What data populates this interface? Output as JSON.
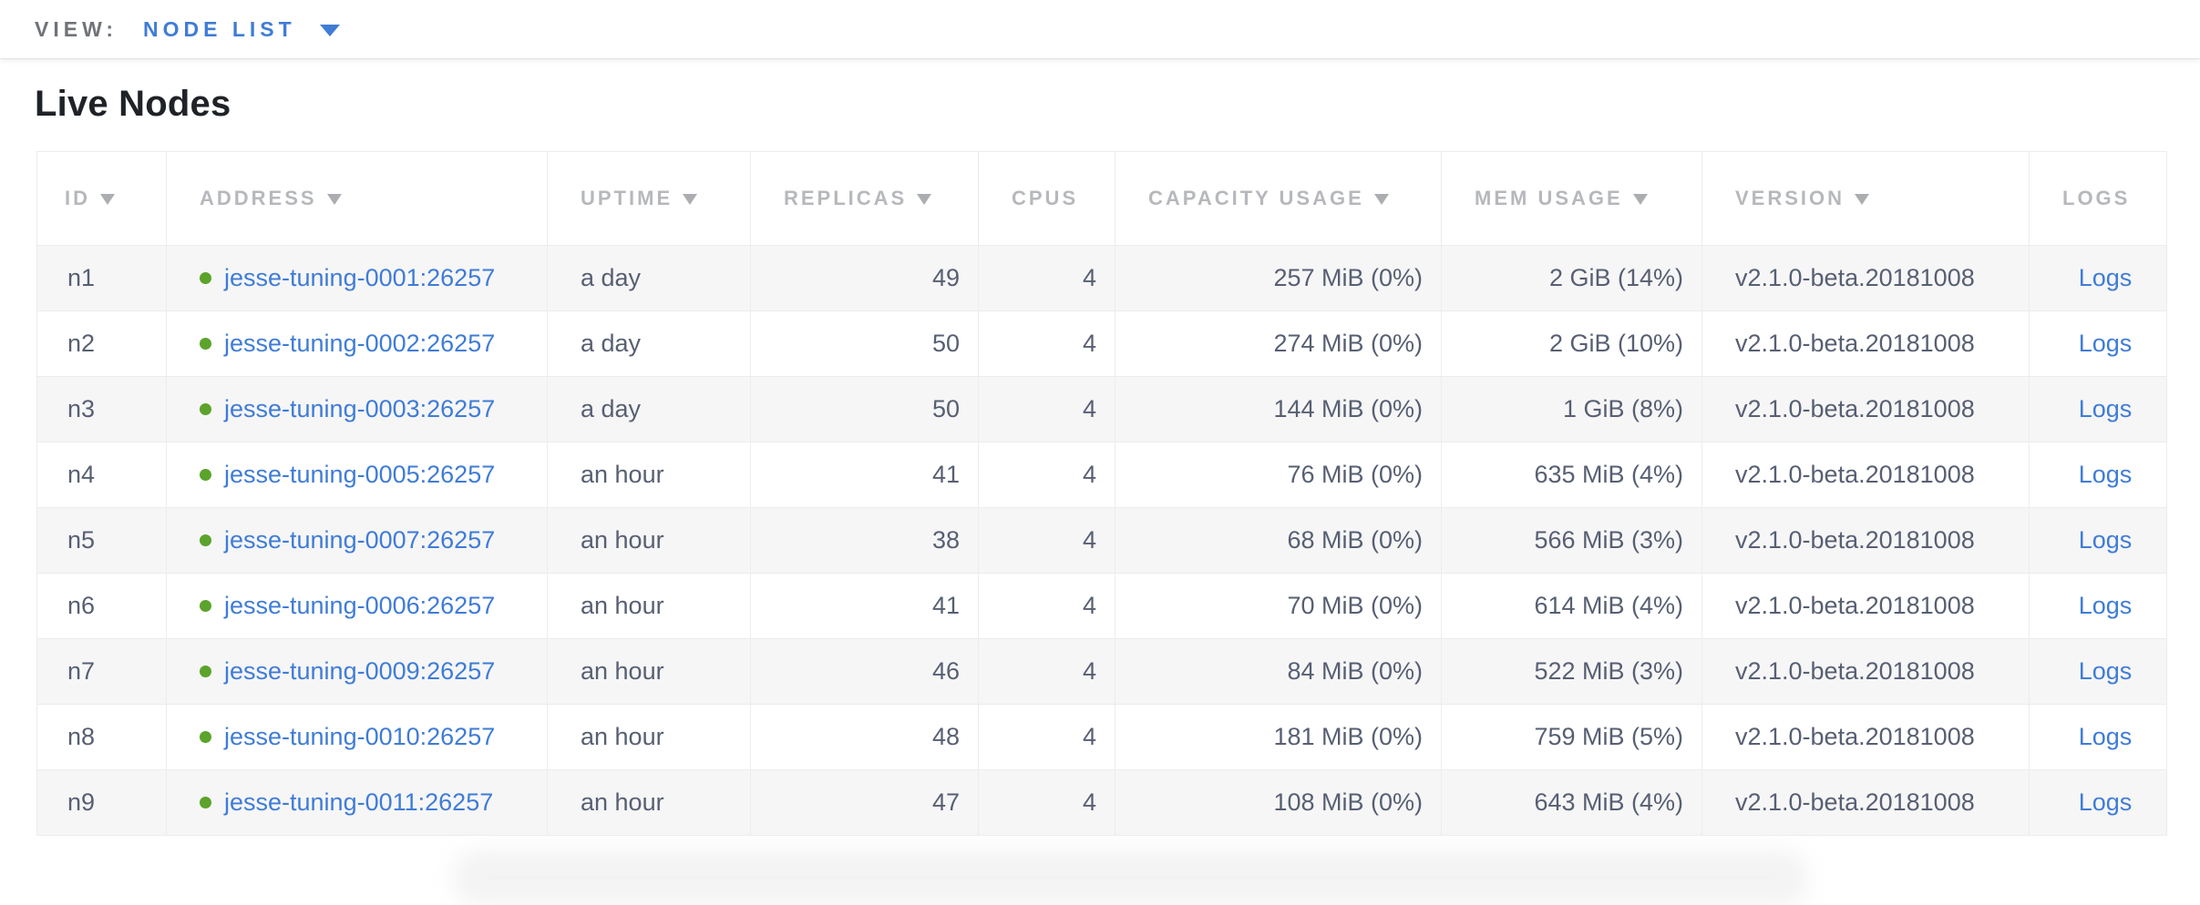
{
  "view_bar": {
    "label": "VIEW:",
    "selected": "NODE LIST"
  },
  "page": {
    "title": "Live Nodes"
  },
  "colors": {
    "link_blue": "#3f7cd6",
    "status_green": "#5ba32a",
    "header_gray": "#b6b8bc",
    "body_text": "#575f72"
  },
  "table": {
    "columns": [
      {
        "key": "id",
        "label": "ID",
        "sortable": true
      },
      {
        "key": "address",
        "label": "ADDRESS",
        "sortable": true
      },
      {
        "key": "uptime",
        "label": "UPTIME",
        "sortable": true
      },
      {
        "key": "replicas",
        "label": "REPLICAS",
        "sortable": true
      },
      {
        "key": "cpus",
        "label": "CPUS",
        "sortable": false
      },
      {
        "key": "capacity",
        "label": "CAPACITY USAGE",
        "sortable": true
      },
      {
        "key": "mem",
        "label": "MEM USAGE",
        "sortable": true
      },
      {
        "key": "version",
        "label": "VERSION",
        "sortable": true
      },
      {
        "key": "logs",
        "label": "LOGS",
        "sortable": false
      }
    ],
    "rows": [
      {
        "id": "n1",
        "address": "jesse-tuning-0001:26257",
        "status": "healthy",
        "uptime": "a day",
        "replicas": "49",
        "cpus": "4",
        "capacity": "257 MiB (0%)",
        "mem": "2 GiB (14%)",
        "version": "v2.1.0-beta.20181008",
        "logs": "Logs"
      },
      {
        "id": "n2",
        "address": "jesse-tuning-0002:26257",
        "status": "healthy",
        "uptime": "a day",
        "replicas": "50",
        "cpus": "4",
        "capacity": "274 MiB (0%)",
        "mem": "2 GiB (10%)",
        "version": "v2.1.0-beta.20181008",
        "logs": "Logs"
      },
      {
        "id": "n3",
        "address": "jesse-tuning-0003:26257",
        "status": "healthy",
        "uptime": "a day",
        "replicas": "50",
        "cpus": "4",
        "capacity": "144 MiB (0%)",
        "mem": "1 GiB (8%)",
        "version": "v2.1.0-beta.20181008",
        "logs": "Logs"
      },
      {
        "id": "n4",
        "address": "jesse-tuning-0005:26257",
        "status": "healthy",
        "uptime": "an hour",
        "replicas": "41",
        "cpus": "4",
        "capacity": "76 MiB (0%)",
        "mem": "635 MiB (4%)",
        "version": "v2.1.0-beta.20181008",
        "logs": "Logs"
      },
      {
        "id": "n5",
        "address": "jesse-tuning-0007:26257",
        "status": "healthy",
        "uptime": "an hour",
        "replicas": "38",
        "cpus": "4",
        "capacity": "68 MiB (0%)",
        "mem": "566 MiB (3%)",
        "version": "v2.1.0-beta.20181008",
        "logs": "Logs"
      },
      {
        "id": "n6",
        "address": "jesse-tuning-0006:26257",
        "status": "healthy",
        "uptime": "an hour",
        "replicas": "41",
        "cpus": "4",
        "capacity": "70 MiB (0%)",
        "mem": "614 MiB (4%)",
        "version": "v2.1.0-beta.20181008",
        "logs": "Logs"
      },
      {
        "id": "n7",
        "address": "jesse-tuning-0009:26257",
        "status": "healthy",
        "uptime": "an hour",
        "replicas": "46",
        "cpus": "4",
        "capacity": "84 MiB (0%)",
        "mem": "522 MiB (3%)",
        "version": "v2.1.0-beta.20181008",
        "logs": "Logs"
      },
      {
        "id": "n8",
        "address": "jesse-tuning-0010:26257",
        "status": "healthy",
        "uptime": "an hour",
        "replicas": "48",
        "cpus": "4",
        "capacity": "181 MiB (0%)",
        "mem": "759 MiB (5%)",
        "version": "v2.1.0-beta.20181008",
        "logs": "Logs"
      },
      {
        "id": "n9",
        "address": "jesse-tuning-0011:26257",
        "status": "healthy",
        "uptime": "an hour",
        "replicas": "47",
        "cpus": "4",
        "capacity": "108 MiB (0%)",
        "mem": "643 MiB (4%)",
        "version": "v2.1.0-beta.20181008",
        "logs": "Logs"
      }
    ]
  }
}
